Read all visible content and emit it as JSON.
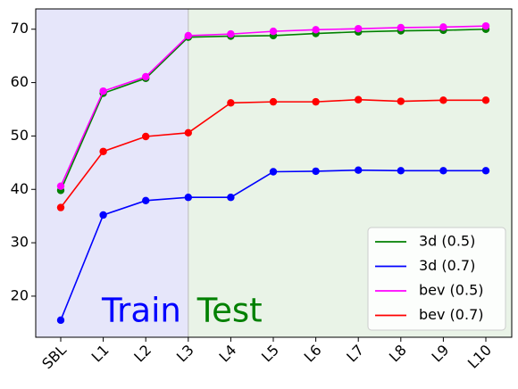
{
  "chart_data": {
    "type": "line",
    "categories": [
      "SBL",
      "L1",
      "L2",
      "L3",
      "L4",
      "L5",
      "L6",
      "L7",
      "L8",
      "L9",
      "L10"
    ],
    "series": [
      {
        "name": "3d (0.5)",
        "color": "green",
        "values": [
          39.8,
          58.0,
          60.8,
          68.5,
          68.7,
          68.8,
          69.2,
          69.5,
          69.7,
          69.8,
          70.0
        ]
      },
      {
        "name": "3d (0.7)",
        "color": "blue",
        "values": [
          15.5,
          35.2,
          37.9,
          38.5,
          38.5,
          43.3,
          43.4,
          43.6,
          43.5,
          43.5,
          43.5
        ]
      },
      {
        "name": "bev (0.5)",
        "color": "magenta",
        "values": [
          40.6,
          58.4,
          61.1,
          68.8,
          69.1,
          69.6,
          69.9,
          70.1,
          70.3,
          70.4,
          70.6
        ]
      },
      {
        "name": "bev (0.7)",
        "color": "red",
        "values": [
          36.6,
          47.1,
          49.9,
          50.6,
          56.2,
          56.4,
          56.4,
          56.8,
          56.5,
          56.7,
          56.7
        ]
      }
    ],
    "regions": [
      {
        "text": "Train",
        "text_color": "blue",
        "fill": "#e6e6fa",
        "span": [
          "SBL",
          "L3"
        ]
      },
      {
        "text": "Test",
        "text_color": "green",
        "fill": "#e9f3e7",
        "span": [
          "L3",
          "L10"
        ]
      }
    ],
    "ylim": [
      12.3,
      73.8
    ],
    "yticks": [
      20,
      30,
      40,
      50,
      60,
      70
    ],
    "grid": false,
    "legend": "lower right"
  }
}
